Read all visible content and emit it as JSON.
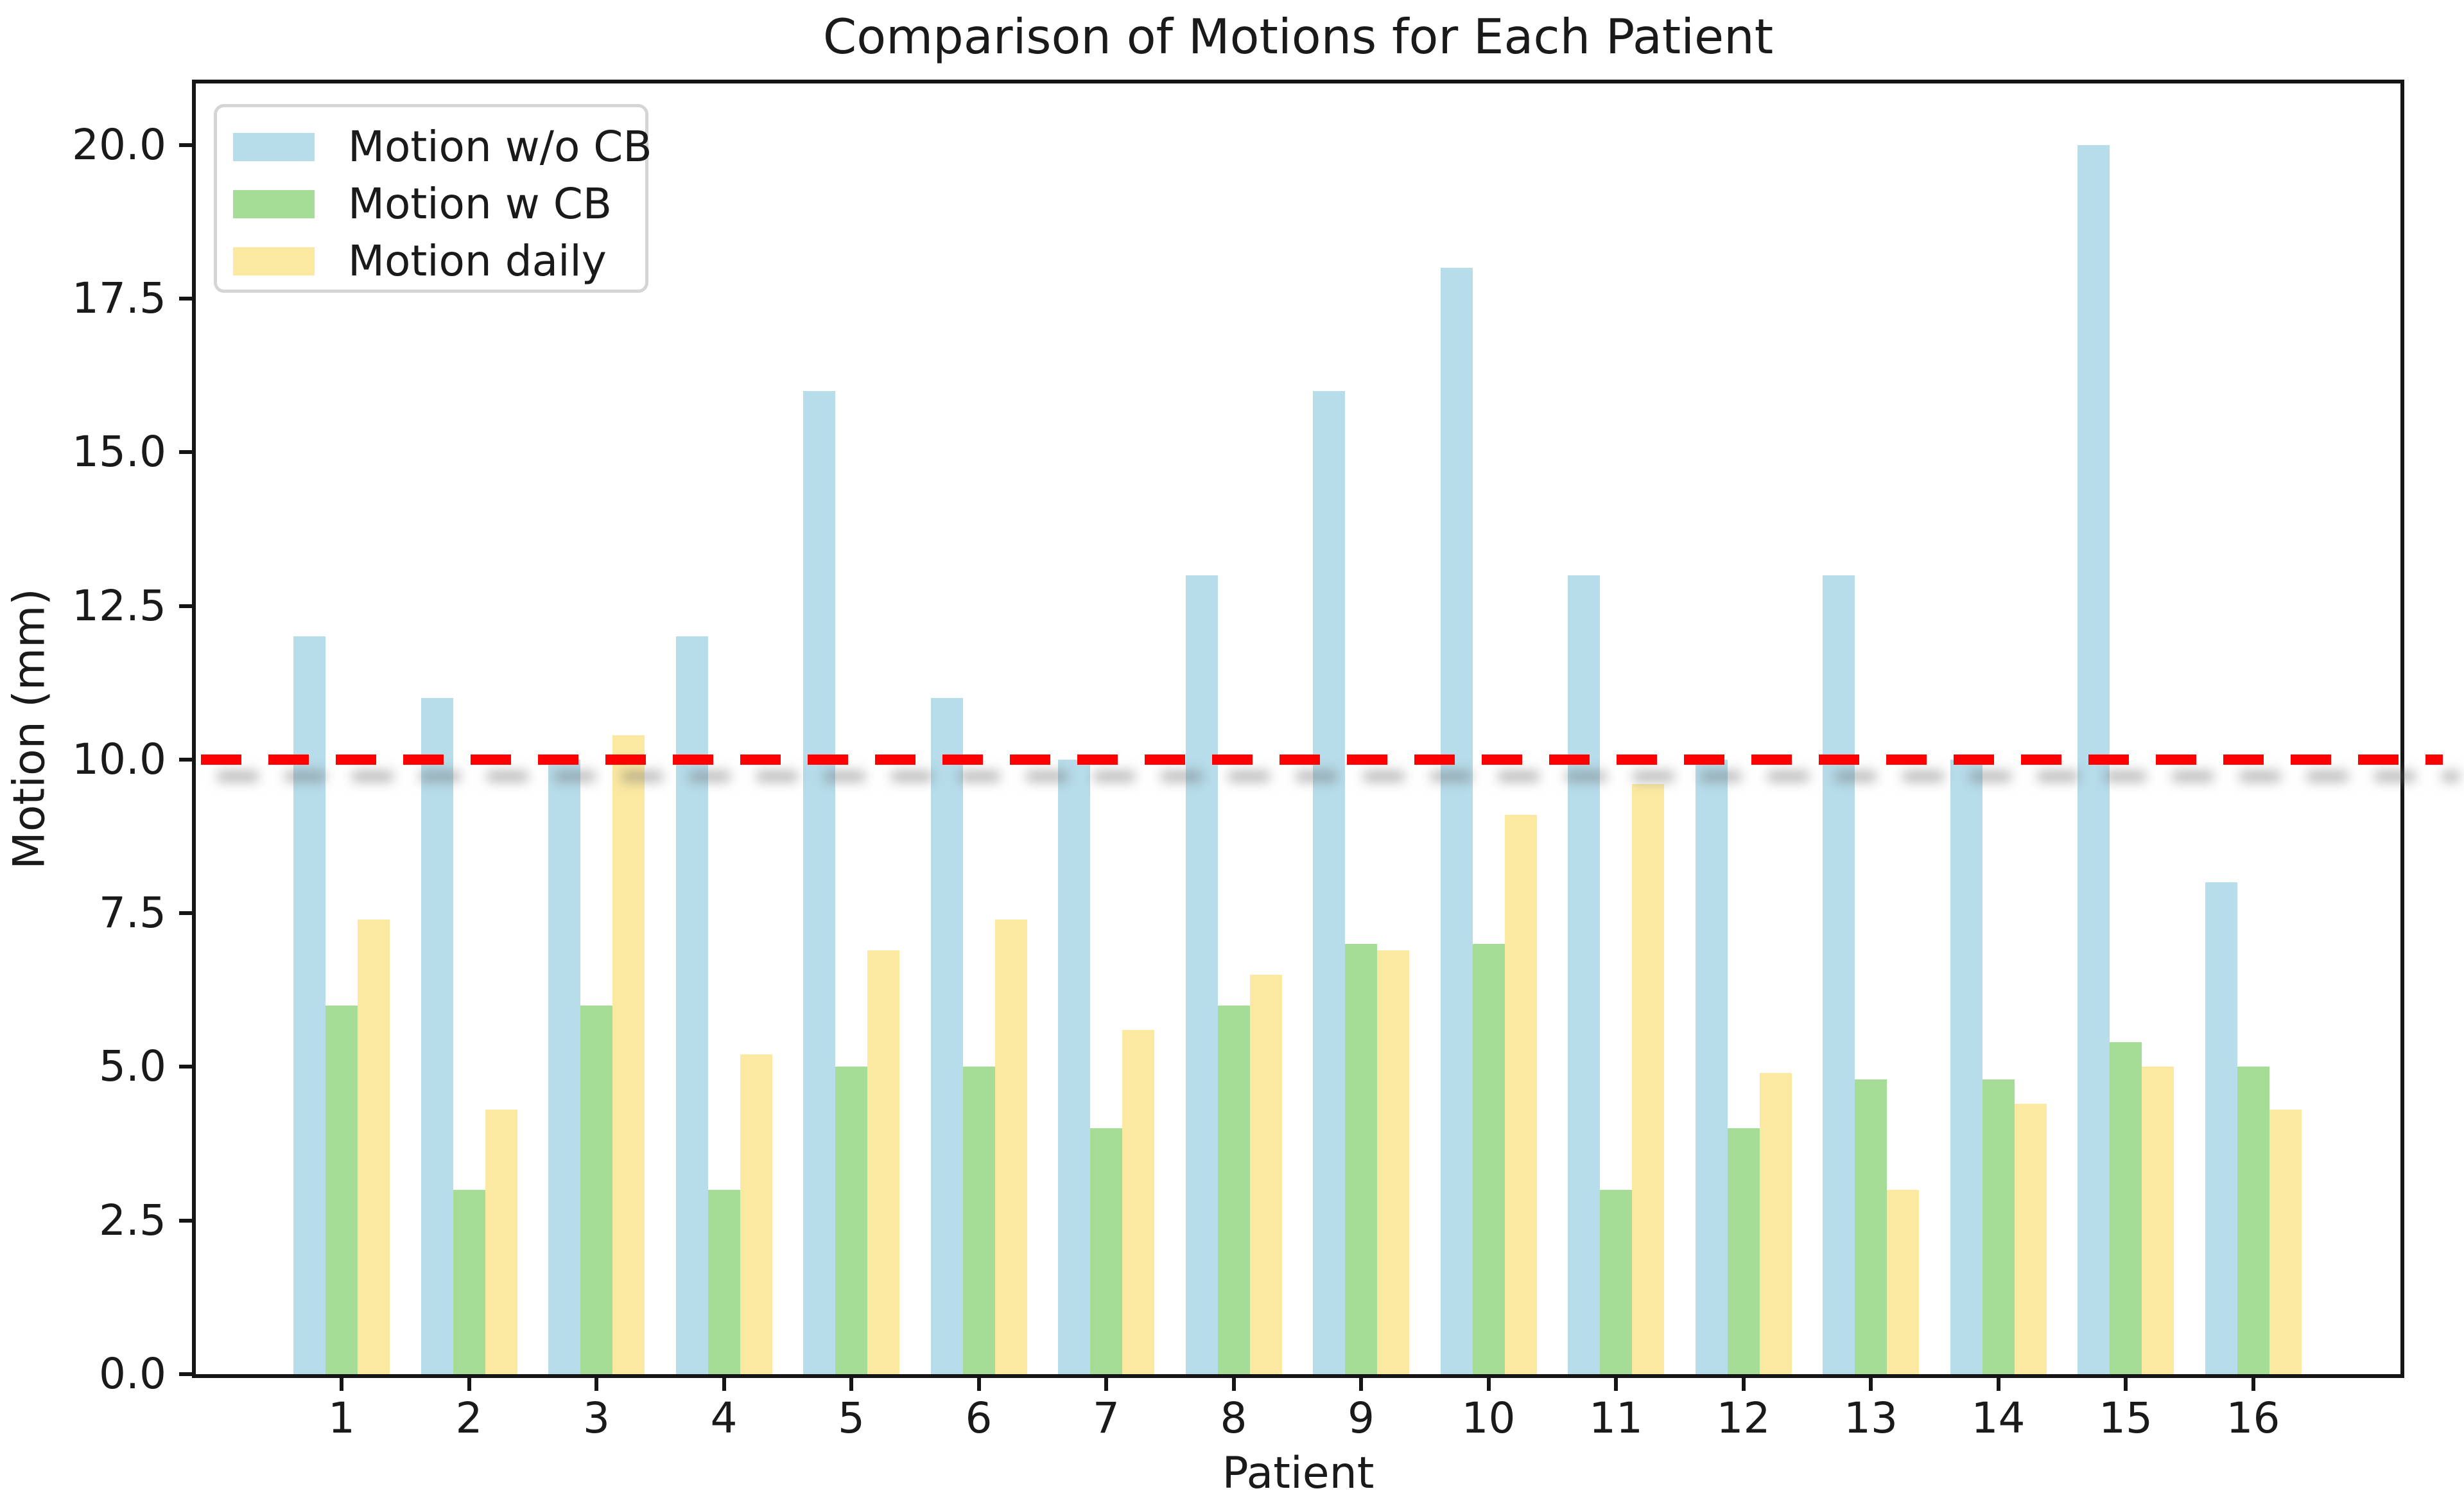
{
  "figure": {
    "title": "Comparison of Motions for Each Patient",
    "xlabel": "Patient",
    "ylabel": "Motion (mm)"
  },
  "legend": {
    "items": [
      {
        "label": "Motion w/o CB",
        "color": "#b7dcea"
      },
      {
        "label": "Motion w CB",
        "color": "#a5dd96"
      },
      {
        "label": "Motion daily",
        "color": "#fbe9a2"
      }
    ]
  },
  "colors": {
    "series_wo_cb": "#b7dcea",
    "series_w_cb": "#a5dd96",
    "series_daily": "#fbe9a2",
    "reference_line": "#ff0000",
    "spine": "#151515"
  },
  "chart_data": {
    "type": "bar",
    "title": "Comparison of Motions for Each Patient",
    "xlabel": "Patient",
    "ylabel": "Motion (mm)",
    "categories": [
      "1",
      "2",
      "3",
      "4",
      "5",
      "6",
      "7",
      "8",
      "9",
      "10",
      "11",
      "12",
      "13",
      "14",
      "15",
      "16"
    ],
    "series": [
      {
        "name": "Motion w/o CB",
        "color": "#b7dcea",
        "values": [
          12,
          11,
          10,
          12,
          16,
          11,
          10,
          13,
          16,
          18,
          13,
          10,
          13,
          10,
          20,
          8
        ]
      },
      {
        "name": "Motion w CB",
        "color": "#a5dd96",
        "values": [
          6,
          3,
          6,
          3,
          5,
          5,
          4,
          6,
          7,
          7,
          3,
          4,
          4.8,
          4.8,
          5.4,
          5
        ]
      },
      {
        "name": "Motion daily",
        "color": "#fbe9a2",
        "values": [
          7.4,
          4.3,
          10.4,
          5.2,
          6.9,
          7.4,
          5.6,
          6.5,
          6.9,
          9.1,
          9.6,
          4.9,
          3.0,
          4.4,
          5.0,
          4.3
        ]
      }
    ],
    "reference_line": {
      "y": 10,
      "color": "#ff0000",
      "style": "dashed"
    },
    "ylim": [
      0,
      21
    ],
    "yticks": [
      0.0,
      2.5,
      5.0,
      7.5,
      10.0,
      12.5,
      15.0,
      17.5,
      20.0
    ],
    "ytick_labels": [
      "0.0",
      "2.5",
      "5.0",
      "7.5",
      "10.0",
      "12.5",
      "15.0",
      "17.5",
      "20.0"
    ],
    "grid": false,
    "legend_position": "upper left"
  }
}
